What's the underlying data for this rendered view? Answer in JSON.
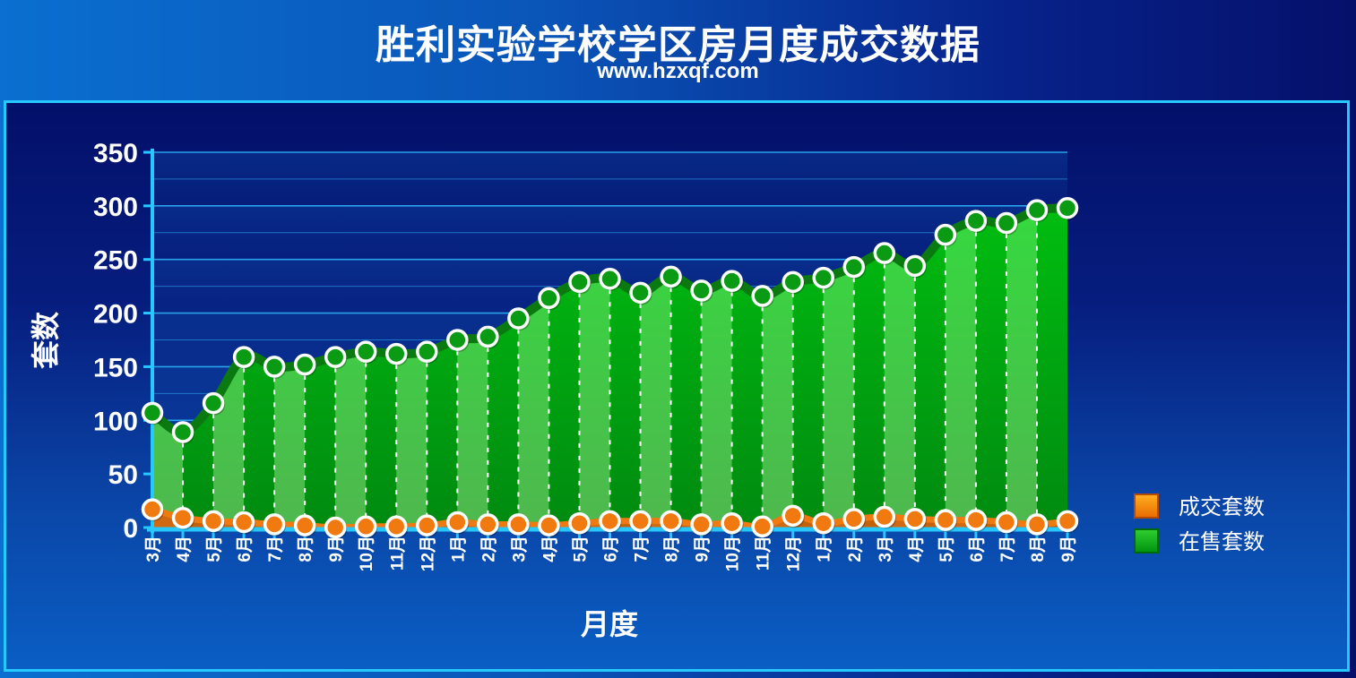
{
  "title": "胜利实验学校学区房月度成交数据",
  "subtitle": "www.hzxqf.com",
  "colors": {
    "deal_series": "#f07a10",
    "listing_series": "#00b400",
    "axis": "#27c8ff"
  },
  "chart_data": {
    "type": "area",
    "title": "胜利实验学校学区房月度成交数据",
    "subtitle": "www.hzxqf.com",
    "xlabel": "月度",
    "ylabel": "套数",
    "ylim": [
      0,
      350
    ],
    "yticks": [
      0,
      50,
      100,
      150,
      200,
      250,
      300,
      350
    ],
    "grid": true,
    "legend_position": "right",
    "categories": [
      "3月",
      "4月",
      "5月",
      "6月",
      "7月",
      "8月",
      "9月",
      "10月",
      "11月",
      "12月",
      "1月",
      "2月",
      "3月",
      "4月",
      "5月",
      "6月",
      "7月",
      "8月",
      "9月",
      "10月",
      "11月",
      "12月",
      "1月",
      "2月",
      "3月",
      "4月",
      "5月",
      "6月",
      "7月",
      "8月",
      "9月"
    ],
    "series": [
      {
        "name": "成交套数",
        "color": "#f07a10",
        "values": [
          17,
          9,
          6,
          5,
          3,
          2,
          0,
          1,
          1,
          2,
          5,
          3,
          3,
          2,
          4,
          6,
          6,
          6,
          3,
          4,
          1,
          11,
          4,
          8,
          10,
          8,
          7,
          7,
          5,
          3,
          6
        ]
      },
      {
        "name": "在售套数",
        "color": "#00b400",
        "values": [
          107,
          89,
          116,
          159,
          150,
          152,
          159,
          164,
          162,
          164,
          175,
          178,
          195,
          214,
          229,
          232,
          219,
          234,
          221,
          230,
          216,
          229,
          233,
          243,
          256,
          244,
          273,
          286,
          284,
          296,
          298
        ]
      }
    ]
  }
}
